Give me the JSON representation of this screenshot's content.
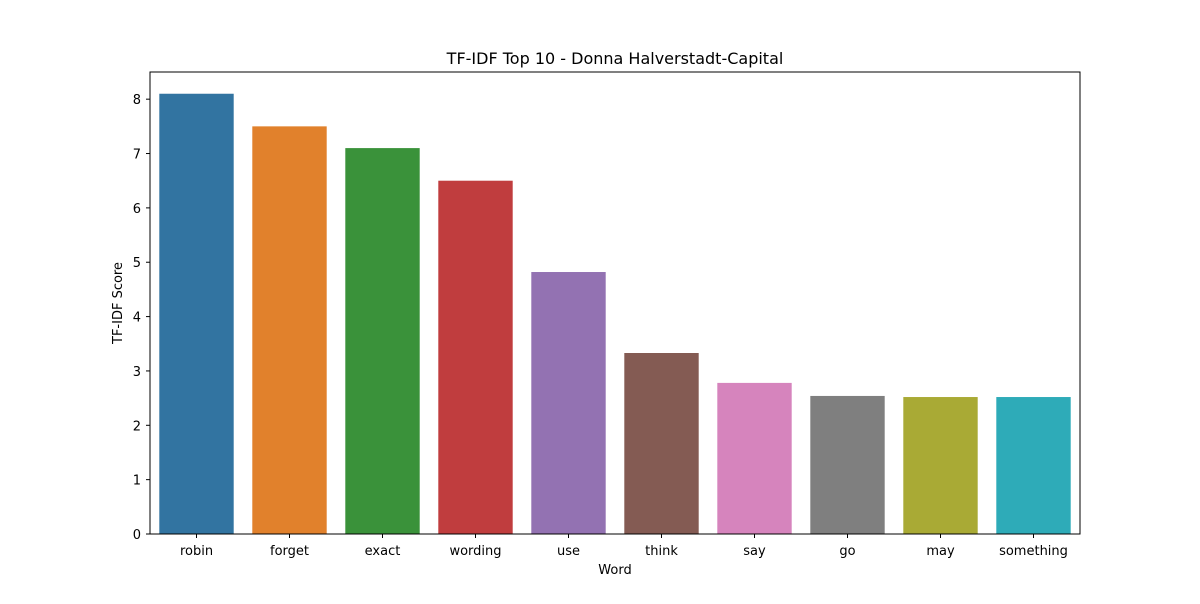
{
  "chart_data": {
    "type": "bar",
    "title": "TF-IDF Top 10 - Donna Halverstadt-Capital",
    "xlabel": "Word",
    "ylabel": "TF-IDF Score",
    "categories": [
      "robin",
      "forget",
      "exact",
      "wording",
      "use",
      "think",
      "say",
      "go",
      "may",
      "something"
    ],
    "values": [
      8.1,
      7.5,
      7.1,
      6.5,
      4.82,
      3.33,
      2.78,
      2.54,
      2.52,
      2.52
    ],
    "colors": [
      "#3274a1",
      "#e1812c",
      "#3a923a",
      "#c03d3e",
      "#9372b2",
      "#845b53",
      "#d684bd",
      "#7f7f7f",
      "#a9aa35",
      "#2eabb8"
    ],
    "ylim": [
      0,
      8.5
    ],
    "yticks": [
      "0",
      "1",
      "2",
      "3",
      "4",
      "5",
      "6",
      "7",
      "8"
    ],
    "grid": false,
    "legend": "none"
  }
}
